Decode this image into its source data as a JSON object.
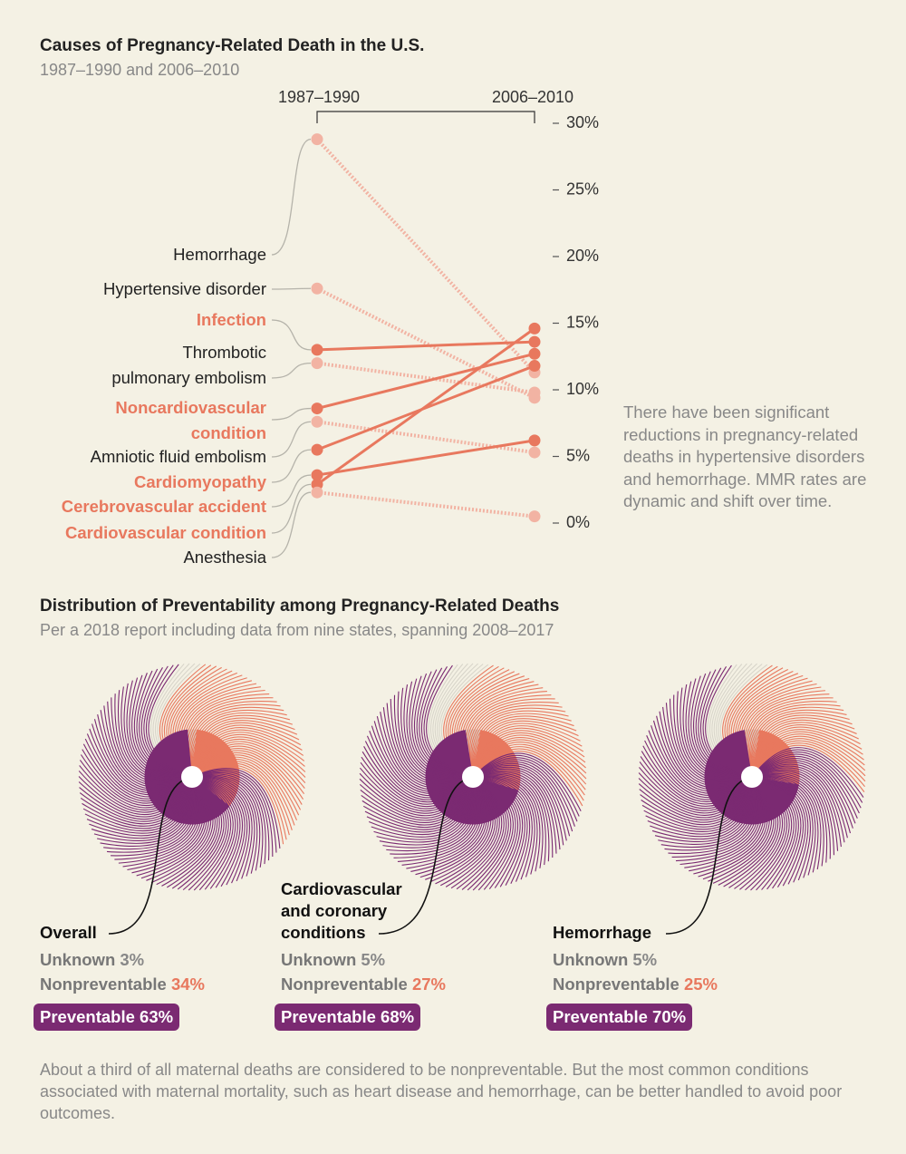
{
  "chart_data": [
    {
      "type": "line",
      "title": "Causes of Pregnancy-Related Death in the U.S.",
      "subtitle": "1987–1990 and 2006–2010",
      "categories": [
        "1987–1990",
        "2006–2010"
      ],
      "ylim": [
        0,
        30
      ],
      "yticks": [
        {
          "value": 0,
          "label": "0%"
        },
        {
          "value": 5,
          "label": "5%"
        },
        {
          "value": 10,
          "label": "10%"
        },
        {
          "value": 15,
          "label": "15%"
        },
        {
          "value": 20,
          "label": "20%"
        },
        {
          "value": 25,
          "label": "25%"
        },
        {
          "value": 30,
          "label": "30%"
        }
      ],
      "series": [
        {
          "name": "Hemorrhage",
          "color": "#f2b3a3",
          "label_color": "#222222",
          "values": [
            28.8,
            11.3
          ]
        },
        {
          "name": "Hypertensive disorder",
          "color": "#f2b3a3",
          "label_color": "#222222",
          "values": [
            17.6,
            9.4
          ]
        },
        {
          "name": "Infection",
          "color": "#e8785e",
          "label_color": "#e8785e",
          "values": [
            13.0,
            13.6
          ]
        },
        {
          "name": "Thrombotic\npulmonary embolism",
          "color": "#f2b3a3",
          "label_color": "#222222",
          "values": [
            12.0,
            9.8
          ]
        },
        {
          "name": "Noncardiovascular\ncondition",
          "color": "#e8785e",
          "label_color": "#e8785e",
          "values": [
            8.6,
            12.7
          ]
        },
        {
          "name": "Amniotic fluid embolism",
          "color": "#f2b3a3",
          "label_color": "#222222",
          "values": [
            7.6,
            5.3
          ]
        },
        {
          "name": "Cardiomyopathy",
          "color": "#e8785e",
          "label_color": "#e8785e",
          "values": [
            5.5,
            11.8
          ]
        },
        {
          "name": "Cerebrovascular accident",
          "color": "#e8785e",
          "label_color": "#e8785e",
          "values": [
            3.6,
            6.2
          ]
        },
        {
          "name": "Cardiovascular condition",
          "color": "#e8785e",
          "label_color": "#e8785e",
          "values": [
            2.9,
            14.6
          ]
        },
        {
          "name": "Anesthesia",
          "color": "#f2b3a3",
          "label_color": "#222222",
          "values": [
            2.3,
            0.5
          ]
        }
      ],
      "annotation": "There have been significant reductions in pregnancy-related deaths in hypertensive disorders and hemorrhage. MMR rates are dynamic and shift over time."
    },
    {
      "type": "pie",
      "title": "Distribution of Preventability among Pregnancy-Related Deaths",
      "subtitle": "Per a 2018 report including data from nine states, spanning 2008–2017",
      "categories": [
        "Unknown",
        "Nonpreventable",
        "Preventable"
      ],
      "colors": [
        "#d8d5ca",
        "#e8785e",
        "#7b2a72"
      ],
      "pies": [
        {
          "title": "Overall",
          "values": [
            3,
            34,
            63
          ],
          "value_labels": [
            "3%",
            "34%",
            "63%"
          ]
        },
        {
          "title": "Cardiovascular\nand coronary\nconditions",
          "values": [
            5,
            27,
            68
          ],
          "value_labels": [
            "5%",
            "27%",
            "68%"
          ]
        },
        {
          "title": "Hemorrhage",
          "values": [
            5,
            25,
            70
          ],
          "value_labels": [
            "5%",
            "25%",
            "70%"
          ]
        }
      ],
      "note": "About a third of all maternal deaths are considered to be nonpreventable. But the most common conditions associated with maternal mortality, such as heart disease and hemorrhage, can be better handled to avoid poor outcomes."
    }
  ]
}
